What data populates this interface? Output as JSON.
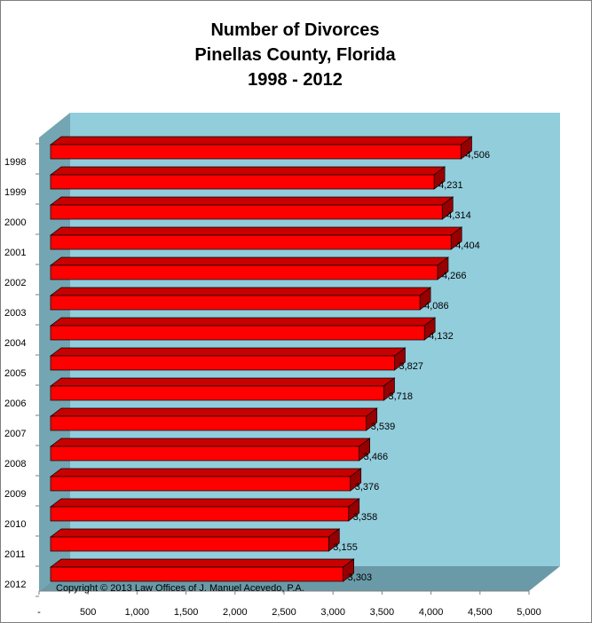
{
  "chart_data": {
    "type": "bar",
    "orientation": "horizontal",
    "title_lines": [
      "Number of Divorces",
      "Pinellas County, Florida",
      "1998 - 2012"
    ],
    "categories": [
      "1998",
      "1999",
      "2000",
      "2001",
      "2002",
      "2003",
      "2004",
      "2005",
      "2006",
      "2007",
      "2008",
      "2009",
      "2010",
      "2011",
      "2012"
    ],
    "values": [
      4506,
      4231,
      4314,
      4404,
      4266,
      4086,
      4132,
      3827,
      3718,
      3539,
      3466,
      3376,
      3358,
      3155,
      3303
    ],
    "value_labels": [
      "4,506",
      "4,231",
      "4,314",
      "4,404",
      "4,266",
      "4,086",
      "4,132",
      "3,827",
      "3,718",
      "3,539",
      "3,466",
      "3,376",
      "3,358",
      "3,155",
      "3,303"
    ],
    "x_tick_labels": [
      "-",
      "500",
      "1,000",
      "1,500",
      "2,000",
      "2,500",
      "3,000",
      "3,500",
      "4,000",
      "4,500",
      "5,000"
    ],
    "xlim": [
      0,
      5000
    ],
    "xlabel": "",
    "ylabel": "",
    "grid": false,
    "legend": "none",
    "style": "3d",
    "colors": {
      "bar": "#ff0000",
      "bar_top": "#c80000",
      "bar_side": "#960000",
      "wall": "#92cddc",
      "wall_side": "#74a5b2",
      "floor": "#6a9aa7"
    }
  },
  "footer": {
    "copyright": "Copyright © 2013 Law Offices of J. Manuel Acevedo, P.A."
  }
}
